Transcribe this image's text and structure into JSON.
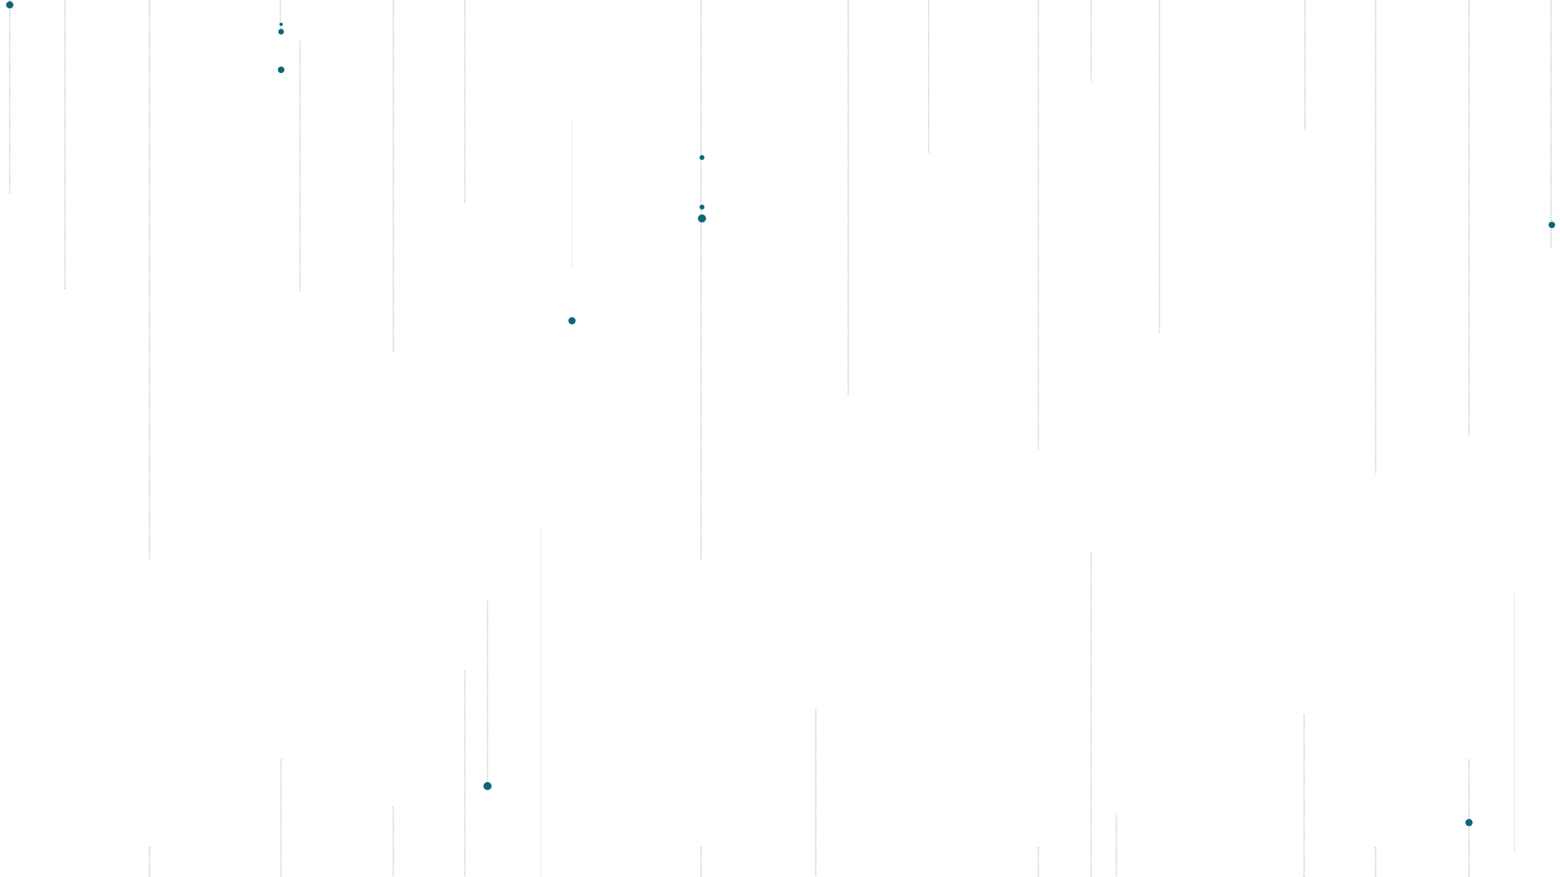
{
  "colors": {
    "background": "#ffffff",
    "dot": "#0b6778",
    "line": "#9fb9c1",
    "faint_line": "#d8e3e7"
  }
}
